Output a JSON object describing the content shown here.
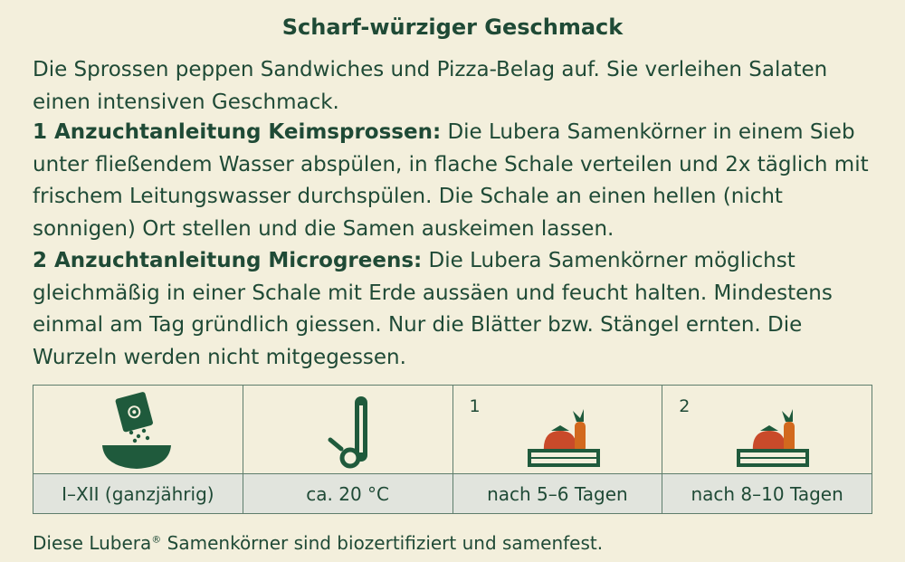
{
  "title": "Scharf-würziger Geschmack",
  "intro": "Die Sprossen peppen Sandwiches und Pizza-Belag auf.  Sie verleihen Salaten einen intensiven Geschmack.",
  "guide1": {
    "heading": "1 Anzuchtanleitung Keimsprossen:",
    "text": " Die Lubera Samenkörner in einem Sieb unter fließendem Wasser abspülen, in flache Schale verteilen und 2x täglich mit frischem Leitungswasser durchspülen. Die Schale an einen hellen (nicht sonnigen) Ort stellen und die Samen auskeimen lassen."
  },
  "guide2": {
    "heading": "2 Anzuchtanleitung Microgreens:",
    "text": " Die Lubera Samenkörner möglichst gleichmäßig in einer Schale mit Erde aussäen und feucht halten. Mindestens einmal am Tag gründlich giessen. Nur die Blätter bzw. Stängel ernten. Die Wurzeln werden nicht mitgegessen."
  },
  "info_cells": [
    {
      "icon": "seed-packet-bowl-icon",
      "number": "",
      "label": "I–XII (ganzjährig)"
    },
    {
      "icon": "thermometer-icon",
      "number": "",
      "label": "ca. 20 °C"
    },
    {
      "icon": "harvest-crate-icon",
      "number": "1",
      "label": "nach 5–6 Tagen"
    },
    {
      "icon": "harvest-crate-icon",
      "number": "2",
      "label": "nach 8–10 Tagen"
    }
  ],
  "footer": {
    "text_before": "Diese Lubera",
    "registered": "®",
    "text_after": " Samenkörner sind biozertifiziert und samenfest."
  },
  "colors": {
    "background": "#f3efdc",
    "text": "#1f4a36",
    "icon_green": "#1f5a3c",
    "label_bg": "#e1e4dd",
    "tomato": "#c94a2a",
    "carrot": "#d2691e"
  }
}
